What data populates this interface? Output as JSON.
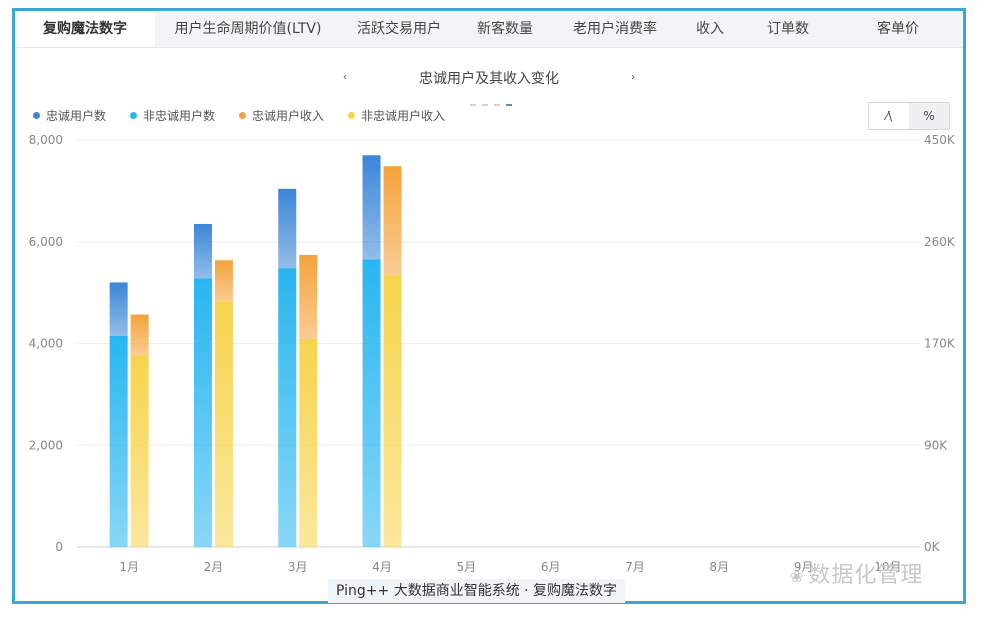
{
  "tabs": [
    {
      "label": "复购魔法数字",
      "width": 140,
      "active": true
    },
    {
      "label": "用户生命周期价值(LTV)",
      "width": 186
    },
    {
      "label": "活跃交易用户",
      "width": 116
    },
    {
      "label": "新客数量",
      "width": 96
    },
    {
      "label": "老用户消费率",
      "width": 124
    },
    {
      "label": "收入",
      "width": 66
    },
    {
      "label": "订单数",
      "width": 90
    },
    {
      "label": "客单价",
      "width": 130
    }
  ],
  "nav": {
    "prev_icon": "‹",
    "next_icon": "›",
    "title": "忠诚用户及其收入变化"
  },
  "legend": [
    {
      "label": "忠诚用户数",
      "color": "#3a86d8"
    },
    {
      "label": "非忠诚用户数",
      "color": "#28b6f0"
    },
    {
      "label": "忠诚用户收入",
      "color": "#f5a33c"
    },
    {
      "label": "非忠诚用户收入",
      "color": "#f7d44c"
    }
  ],
  "toggle": {
    "line_icon": "⁄\\",
    "percent_label": "%"
  },
  "chart_data": {
    "type": "bar",
    "categories": [
      "1月",
      "2月",
      "3月",
      "4月",
      "5月",
      "6月",
      "7月",
      "8月",
      "9月",
      "10月"
    ],
    "left_axis": {
      "ticks": [
        "0",
        "2,000",
        "4,000",
        "6,000",
        "8,000"
      ],
      "ylim": [
        0,
        8000
      ]
    },
    "right_axis": {
      "ticks": [
        "0K",
        "90K",
        "170K",
        "260K",
        "450K"
      ],
      "ylim": [
        0,
        450
      ]
    },
    "grid": true,
    "series": [
      {
        "name": "非忠诚用户数",
        "axis": "left",
        "stack": "users",
        "color": "#28b6f0",
        "values": [
          4150,
          5280,
          5480,
          5650,
          null,
          null,
          null,
          null,
          null,
          null
        ]
      },
      {
        "name": "忠诚用户数",
        "axis": "left",
        "stack": "users",
        "color": "#3a86d8",
        "values": [
          1050,
          1070,
          1560,
          2050,
          null,
          null,
          null,
          null,
          null,
          null
        ]
      },
      {
        "name": "非忠诚用户收入",
        "axis": "right",
        "stack": "revenue",
        "color": "#f7d44c",
        "values": [
          212,
          271,
          230,
          300,
          null,
          null,
          null,
          null,
          null,
          null
        ]
      },
      {
        "name": "忠诚用户收入",
        "axis": "right",
        "stack": "revenue",
        "color": "#f5a33c",
        "values": [
          45,
          46,
          93,
          121,
          null,
          null,
          null,
          null,
          null,
          null
        ]
      }
    ]
  },
  "footer": "Ping++ 大数据商业智能系统 · 复购魔法数字",
  "watermark": {
    "icon": "❀",
    "text": "数据化管理"
  }
}
